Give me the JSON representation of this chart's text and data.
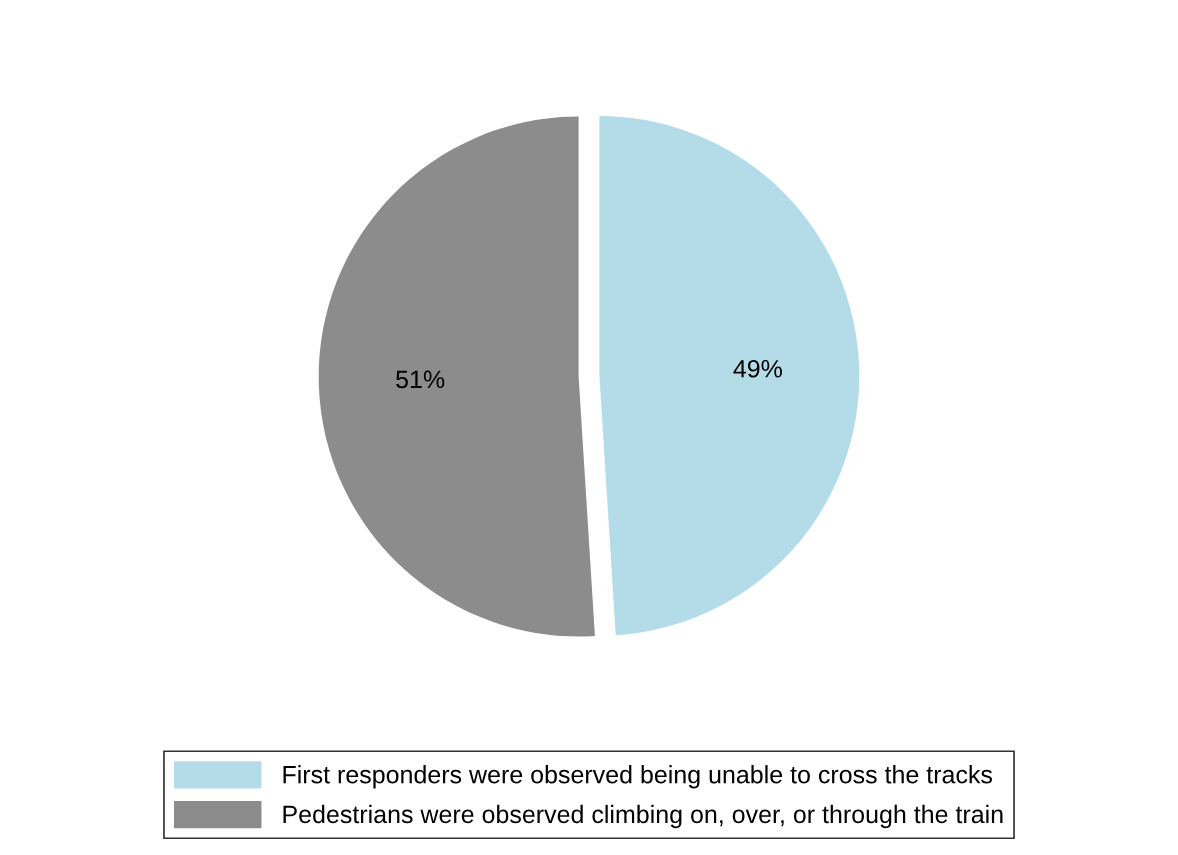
{
  "chart_data": {
    "type": "pie",
    "categories": [
      "First responders were observed being unable to cross the tracks",
      "Pedestrians were observed climbing on, over, or through the train"
    ],
    "values": [
      49,
      51
    ],
    "colors": [
      "#b4dce8",
      "#8c8c8c"
    ],
    "value_labels": [
      "49%",
      "51%"
    ],
    "legend": "bottom"
  }
}
